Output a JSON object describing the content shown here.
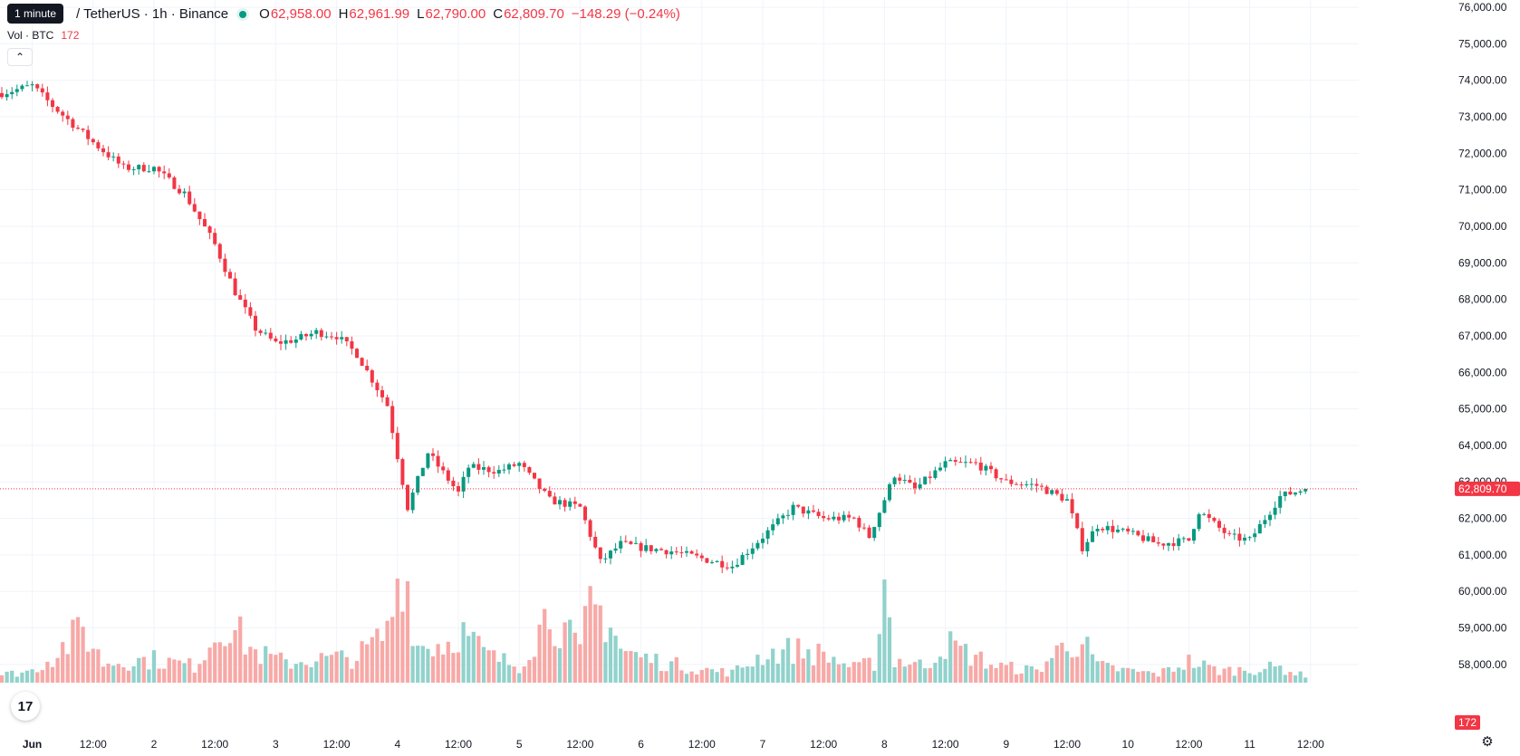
{
  "header": {
    "interval_tooltip": "1 minute",
    "symbol": "/ TetherUS · 1h · Binance",
    "open_label": "O",
    "open": "62,958.00",
    "high_label": "H",
    "high": "62,961.99",
    "low_label": "L",
    "low": "62,790.00",
    "close_label": "C",
    "close": "62,809.70",
    "change": "−148.29 (−0.24%)"
  },
  "volume_legend": {
    "label": "Vol · BTC",
    "value": "172"
  },
  "collapse_icon": "chevron-up-icon",
  "logo_text": "17",
  "settings_icon": "gear-icon",
  "colors": {
    "up": "#089981",
    "down": "#f23645",
    "up_vol": "#92d2cc",
    "down_vol": "#f7a9a7",
    "grid": "#f0f3fa",
    "axis_text": "#131722"
  },
  "chart_data": {
    "type": "candlestick",
    "symbol": "BTC / TetherUS",
    "interval": "1h",
    "exchange": "Binance",
    "y_ticks": [
      "58,000.00",
      "59,000.00",
      "60,000.00",
      "61,000.00",
      "62,000.00",
      "63,000.00",
      "64,000.00",
      "65,000.00",
      "66,000.00",
      "67,000.00",
      "68,000.00",
      "69,000.00",
      "70,000.00",
      "71,000.00",
      "72,000.00",
      "73,000.00",
      "74,000.00",
      "75,000.00",
      "76,000.00"
    ],
    "x_ticks": [
      {
        "label": "Jun",
        "bar": 6
      },
      {
        "label": "12:00",
        "bar": 18
      },
      {
        "label": "2",
        "bar": 30
      },
      {
        "label": "12:00",
        "bar": 42
      },
      {
        "label": "3",
        "bar": 54
      },
      {
        "label": "12:00",
        "bar": 66
      },
      {
        "label": "4",
        "bar": 78
      },
      {
        "label": "12:00",
        "bar": 90
      },
      {
        "label": "5",
        "bar": 102
      },
      {
        "label": "12:00",
        "bar": 114
      },
      {
        "label": "6",
        "bar": 126
      },
      {
        "label": "12:00",
        "bar": 138
      },
      {
        "label": "7",
        "bar": 150
      },
      {
        "label": "12:00",
        "bar": 162
      },
      {
        "label": "8",
        "bar": 174
      },
      {
        "label": "12:00",
        "bar": 186
      },
      {
        "label": "9",
        "bar": 198
      },
      {
        "label": "12:00",
        "bar": 210
      },
      {
        "label": "10",
        "bar": 222
      },
      {
        "label": "12:00",
        "bar": 234
      },
      {
        "label": "11",
        "bar": 246
      },
      {
        "label": "12:00",
        "bar": 258
      }
    ],
    "y_range": [
      57500,
      76200
    ],
    "last_price": 62809.7,
    "last_price_label": "62,809.70",
    "last_volume_label": "172",
    "anchors": [
      [
        0,
        73650
      ],
      [
        6,
        73850
      ],
      [
        10,
        73300
      ],
      [
        18,
        72300
      ],
      [
        24,
        71600
      ],
      [
        30,
        71600
      ],
      [
        36,
        70900
      ],
      [
        42,
        69500
      ],
      [
        46,
        68200
      ],
      [
        50,
        67200
      ],
      [
        54,
        66800
      ],
      [
        58,
        66900
      ],
      [
        62,
        67100
      ],
      [
        66,
        67000
      ],
      [
        70,
        66500
      ],
      [
        76,
        65100
      ],
      [
        80,
        62300
      ],
      [
        84,
        63800
      ],
      [
        90,
        62700
      ],
      [
        92,
        63400
      ],
      [
        98,
        63300
      ],
      [
        102,
        63500
      ],
      [
        108,
        62500
      ],
      [
        114,
        62300
      ],
      [
        118,
        60800
      ],
      [
        122,
        61300
      ],
      [
        126,
        61200
      ],
      [
        132,
        61100
      ],
      [
        138,
        60900
      ],
      [
        144,
        60700
      ],
      [
        150,
        61500
      ],
      [
        156,
        62300
      ],
      [
        162,
        62000
      ],
      [
        168,
        62000
      ],
      [
        171,
        61500
      ],
      [
        176,
        63200
      ],
      [
        180,
        62800
      ],
      [
        186,
        63500
      ],
      [
        192,
        63500
      ],
      [
        198,
        63000
      ],
      [
        204,
        62900
      ],
      [
        210,
        62500
      ],
      [
        213,
        61200
      ],
      [
        216,
        61800
      ],
      [
        222,
        61600
      ],
      [
        228,
        61300
      ],
      [
        234,
        61400
      ],
      [
        236,
        62200
      ],
      [
        242,
        61500
      ],
      [
        246,
        61400
      ],
      [
        252,
        62600
      ],
      [
        257,
        62810
      ]
    ],
    "volume_anchors": [
      [
        0,
        120
      ],
      [
        6,
        180
      ],
      [
        10,
        400
      ],
      [
        16,
        800
      ],
      [
        20,
        300
      ],
      [
        30,
        350
      ],
      [
        38,
        250
      ],
      [
        44,
        950
      ],
      [
        50,
        450
      ],
      [
        56,
        300
      ],
      [
        62,
        350
      ],
      [
        70,
        380
      ],
      [
        76,
        750
      ],
      [
        79,
        1900
      ],
      [
        82,
        550
      ],
      [
        88,
        600
      ],
      [
        90,
        800
      ],
      [
        96,
        400
      ],
      [
        102,
        250
      ],
      [
        108,
        1100
      ],
      [
        114,
        450
      ],
      [
        116,
        1200
      ],
      [
        118,
        1050
      ],
      [
        120,
        950
      ],
      [
        122,
        500
      ],
      [
        126,
        380
      ],
      [
        132,
        280
      ],
      [
        138,
        200
      ],
      [
        144,
        150
      ],
      [
        150,
        420
      ],
      [
        156,
        500
      ],
      [
        162,
        420
      ],
      [
        168,
        220
      ],
      [
        172,
        300
      ],
      [
        174,
        1550
      ],
      [
        176,
        350
      ],
      [
        182,
        250
      ],
      [
        186,
        600
      ],
      [
        190,
        450
      ],
      [
        196,
        250
      ],
      [
        204,
        180
      ],
      [
        210,
        600
      ],
      [
        213,
        620
      ],
      [
        216,
        250
      ],
      [
        222,
        180
      ],
      [
        228,
        130
      ],
      [
        234,
        320
      ],
      [
        240,
        180
      ],
      [
        246,
        200
      ],
      [
        252,
        230
      ],
      [
        256,
        120
      ]
    ],
    "volume_max": 2100
  }
}
